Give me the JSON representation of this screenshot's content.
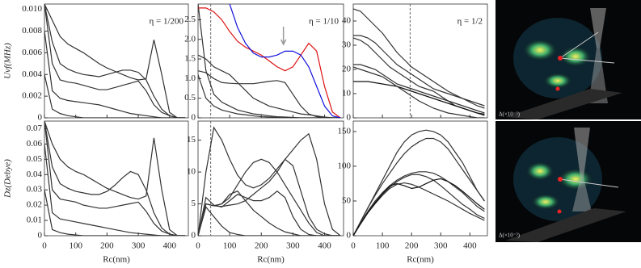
{
  "chart_data": [
    {
      "type": "line",
      "annotation": "η = 1/200",
      "ylabel": "Uvf(MHz)",
      "xlim": [
        0,
        460
      ],
      "ylim": [
        0,
        0.0105
      ],
      "xticks": [
        0,
        100,
        200,
        300,
        400
      ],
      "yticks": [
        0,
        0.002,
        0.004,
        0.006,
        0.008,
        {
          "value": 0.01,
          "label": "0.010"
        }
      ],
      "x": [
        0,
        25,
        50,
        75,
        100,
        125,
        150,
        175,
        200,
        225,
        250,
        275,
        300,
        325,
        350,
        375,
        400,
        425,
        450
      ],
      "series": [
        {
          "color": "#333333",
          "values": [
            0.0105,
            0.009,
            0.0075,
            0.0068,
            0.0064,
            0.006,
            0.0055,
            0.005,
            0.0046,
            0.0043,
            0.004,
            0.0037,
            0.0035,
            0.0036,
            0.0072,
            0.004,
            0.0005,
            0,
            0
          ]
        },
        {
          "color": "#333333",
          "values": [
            0.0105,
            0.007,
            0.005,
            0.0045,
            0.0042,
            0.004,
            0.0039,
            0.0038,
            0.004,
            0.0042,
            0.0044,
            0.0044,
            0.0042,
            0.0035,
            0.002,
            0.0008,
            0.0002,
            0,
            0
          ]
        },
        {
          "color": "#333333",
          "values": [
            0.0105,
            0.005,
            0.0035,
            0.0033,
            0.0032,
            0.003,
            0.0028,
            0.0026,
            0.0026,
            0.0028,
            0.003,
            0.0032,
            0.0034,
            0.0025,
            0.0012,
            0.0005,
            0.0002,
            0,
            0
          ]
        },
        {
          "color": "#333333",
          "values": [
            0.008,
            0.0025,
            0.0018,
            0.0016,
            0.0015,
            0.0014,
            0.0013,
            0.0012,
            0.001,
            0.0008,
            0.0006,
            0.0004,
            0.0003,
            0.0002,
            0.0001,
            0,
            0,
            0,
            0
          ]
        },
        {
          "color": "#333333",
          "values": [
            0.004,
            0.0008,
            0.0004,
            0.0002,
            0.0001,
            0,
            0,
            0,
            0,
            0,
            0,
            0,
            0,
            0,
            0,
            0,
            0,
            0,
            0
          ]
        }
      ]
    },
    {
      "type": "line",
      "annotation": "η = 1/10",
      "vline": 40,
      "arrow_x": 270,
      "xlim": [
        0,
        460
      ],
      "ylim": [
        0,
        2.9
      ],
      "xticks": [
        0,
        100,
        200,
        300,
        400
      ],
      "yticks": [
        0,
        0.5,
        {
          "value": 1,
          "label": "1.0"
        },
        1.5,
        {
          "value": 2,
          "label": "2.0"
        },
        2.5
      ],
      "x": [
        0,
        25,
        50,
        75,
        100,
        125,
        150,
        175,
        200,
        225,
        250,
        275,
        300,
        325,
        350,
        375,
        400,
        425,
        450
      ],
      "series": [
        {
          "color": "#333333",
          "values": [
            1.6,
            1.5,
            1.3,
            1.2,
            1.1,
            0.9,
            0.7,
            0.5,
            0.4,
            0.3,
            0.25,
            0.2,
            0.15,
            0.1,
            0.08,
            0.05,
            0.02,
            0,
            0
          ]
        },
        {
          "color": "#333333",
          "values": [
            1.2,
            1.15,
            1.0,
            0.9,
            0.88,
            0.87,
            0.87,
            0.87,
            0.9,
            0.93,
            0.95,
            0.9,
            0.6,
            0.3,
            0.1,
            0.03,
            0,
            0,
            0
          ]
        },
        {
          "color": "#333333",
          "values": [
            2.9,
            1.2,
            0.6,
            0.4,
            0.3,
            0.2,
            0.15,
            0.1,
            0.08,
            0.05,
            0.03,
            0.02,
            0.01,
            0,
            0,
            0,
            0,
            0,
            0
          ]
        },
        {
          "color": "#333333",
          "values": [
            1.1,
            0.5,
            0.3,
            0.2,
            0.15,
            0.1,
            0.08,
            0.05,
            0.03,
            0.02,
            0.01,
            0,
            0,
            0,
            0,
            0,
            0,
            0,
            0
          ]
        },
        {
          "color": "#dd1111",
          "values": [
            2.8,
            2.8,
            2.7,
            2.5,
            2.2,
            1.95,
            1.8,
            1.7,
            1.6,
            1.45,
            1.3,
            1.2,
            1.3,
            1.6,
            1.9,
            1.7,
            0.8,
            0.15,
            0
          ]
        },
        {
          "color": "#1111dd",
          "values": [
            null,
            null,
            null,
            null,
            2.9,
            2.3,
            1.9,
            1.65,
            1.55,
            1.55,
            1.6,
            1.7,
            1.7,
            1.6,
            1.3,
            0.8,
            0.3,
            0.05,
            0
          ]
        }
      ]
    },
    {
      "type": "line",
      "annotation": "η = 1/2",
      "vline": 195,
      "xlim": [
        0,
        460
      ],
      "ylim": [
        0,
        47
      ],
      "xticks": [
        0,
        100,
        200,
        300,
        400
      ],
      "yticks": [
        0,
        10,
        20,
        30,
        40
      ],
      "x": [
        0,
        25,
        50,
        75,
        100,
        125,
        150,
        175,
        200,
        225,
        250,
        275,
        300,
        325,
        350,
        375,
        400,
        425,
        450
      ],
      "series": [
        {
          "color": "#333333",
          "values": [
            45,
            44,
            41,
            38,
            35,
            31,
            27,
            24,
            21,
            19,
            17,
            15,
            13,
            11,
            9.5,
            8,
            6.5,
            5,
            4
          ]
        },
        {
          "color": "#333333",
          "values": [
            34,
            34,
            33,
            31,
            28,
            25,
            22,
            20,
            18,
            16,
            14,
            12,
            11,
            10,
            9,
            8,
            7,
            6,
            5
          ]
        },
        {
          "color": "#333333",
          "values": [
            33,
            32,
            30,
            27,
            24,
            21,
            19,
            17,
            15,
            13,
            12,
            11,
            9,
            7,
            5,
            4,
            3,
            2,
            1
          ]
        },
        {
          "color": "#333333",
          "values": [
            22,
            22,
            21,
            20,
            18,
            16,
            14,
            13,
            12,
            11,
            10,
            9,
            8,
            7,
            6,
            5,
            4,
            3,
            2
          ]
        },
        {
          "color": "#111111",
          "values": [
            15,
            15,
            15,
            14.5,
            14,
            13.5,
            13,
            12,
            11,
            10,
            9,
            8,
            7,
            6,
            5,
            4,
            3,
            2,
            1.5
          ]
        },
        {
          "color": "#333333",
          "values": [
            21,
            20,
            19,
            18,
            17,
            15,
            13,
            11,
            9,
            7,
            5.5,
            4,
            3,
            2,
            1.5,
            1,
            0.5,
            0,
            0
          ]
        }
      ]
    },
    {
      "type": "line",
      "ylabel": "Dz(Debye)",
      "xlabel": "Rc(nm)",
      "xlim": [
        0,
        460
      ],
      "ylim": [
        0,
        0.075
      ],
      "xticks": [
        0,
        100,
        200,
        300,
        400
      ],
      "yticks": [
        0,
        0.01,
        0.02,
        0.03,
        0.04,
        0.05,
        0.06,
        0.07
      ],
      "x": [
        0,
        25,
        50,
        75,
        100,
        125,
        150,
        175,
        200,
        225,
        250,
        275,
        300,
        325,
        350,
        375,
        400,
        425,
        450
      ],
      "series": [
        {
          "color": "#333333",
          "values": [
            0.075,
            0.06,
            0.05,
            0.045,
            0.042,
            0.04,
            0.037,
            0.034,
            0.031,
            0.029,
            0.027,
            0.025,
            0.024,
            0.026,
            0.064,
            0.03,
            0.004,
            0,
            0
          ]
        },
        {
          "color": "#333333",
          "values": [
            0.075,
            0.045,
            0.034,
            0.031,
            0.029,
            0.028,
            0.027,
            0.027,
            0.029,
            0.033,
            0.038,
            0.042,
            0.04,
            0.03,
            0.015,
            0.005,
            0.001,
            0,
            0
          ]
        },
        {
          "color": "#333333",
          "values": [
            0.075,
            0.03,
            0.024,
            0.023,
            0.022,
            0.02,
            0.019,
            0.018,
            0.018,
            0.019,
            0.02,
            0.021,
            0.022,
            0.016,
            0.008,
            0.003,
            0.001,
            0,
            0
          ]
        },
        {
          "color": "#333333",
          "values": [
            0.06,
            0.015,
            0.011,
            0.01,
            0.009,
            0.008,
            0.007,
            0.006,
            0.005,
            0.004,
            0.003,
            0.002,
            0.0015,
            0.001,
            0.0005,
            0,
            0,
            0,
            0
          ]
        },
        {
          "color": "#333333",
          "values": [
            0.03,
            0.004,
            0.002,
            0.001,
            0.0005,
            0,
            0,
            0,
            0,
            0,
            0,
            0,
            0,
            0,
            0,
            0,
            0,
            0,
            0
          ]
        }
      ]
    },
    {
      "type": "line",
      "xlabel": "Rc(nm)",
      "vline": 40,
      "xlim": [
        0,
        460
      ],
      "ylim": [
        0,
        18
      ],
      "xticks": [
        0,
        100,
        200,
        300,
        400
      ],
      "yticks": [
        0,
        5,
        10,
        15
      ],
      "x": [
        0,
        25,
        50,
        75,
        100,
        125,
        150,
        175,
        200,
        225,
        250,
        275,
        300,
        325,
        350,
        375,
        400,
        425,
        450
      ],
      "series": [
        {
          "color": "#333333",
          "values": [
            0,
            5,
            4.7,
            4.6,
            4.8,
            5,
            5.5,
            6.5,
            7.5,
            8.5,
            10,
            12,
            13.5,
            15,
            16,
            12,
            5,
            1,
            0
          ]
        },
        {
          "color": "#333333",
          "values": [
            0,
            10,
            17,
            15,
            12,
            9.5,
            8,
            7.5,
            8,
            9,
            10.5,
            12,
            11,
            7,
            3,
            1,
            0.3,
            0,
            0
          ]
        },
        {
          "color": "#333333",
          "values": [
            0,
            5,
            4.7,
            5,
            6,
            8,
            10,
            11.5,
            12,
            11.5,
            10,
            8,
            6,
            4,
            2,
            0.5,
            0,
            0,
            0
          ]
        },
        {
          "color": "#333333",
          "values": [
            0,
            6,
            4.8,
            4.5,
            5.5,
            6.5,
            6,
            5.5,
            5.5,
            6,
            7,
            6,
            3,
            1,
            0.2,
            0,
            0,
            0,
            0
          ]
        },
        {
          "color": "#333333",
          "values": [
            0,
            5,
            4.7,
            5,
            6.5,
            7,
            5.5,
            4,
            3,
            2,
            1.2,
            0.6,
            0.3,
            0,
            0,
            0,
            0,
            0,
            0
          ]
        },
        {
          "color": "#333333",
          "values": [
            0,
            4.5,
            3,
            1.5,
            0.5,
            0.2,
            0,
            0,
            0,
            0,
            0,
            0,
            0,
            0,
            0,
            0,
            0,
            0,
            0
          ]
        }
      ]
    },
    {
      "type": "line",
      "xlabel": "Rc(nm)",
      "xlim": [
        0,
        460
      ],
      "ylim": [
        0,
        165
      ],
      "xticks": [
        0,
        100,
        200,
        300,
        400
      ],
      "yticks": [
        0,
        50,
        100,
        150
      ],
      "x": [
        0,
        25,
        50,
        75,
        100,
        125,
        150,
        175,
        200,
        225,
        250,
        275,
        300,
        325,
        350,
        375,
        400,
        425,
        450
      ],
      "series": [
        {
          "color": "#333333",
          "values": [
            0,
            20,
            40,
            60,
            80,
            100,
            120,
            135,
            145,
            150,
            152,
            150,
            145,
            135,
            120,
            105,
            85,
            65,
            50
          ]
        },
        {
          "color": "#333333",
          "values": [
            0,
            20,
            40,
            58,
            75,
            90,
            105,
            118,
            128,
            135,
            140,
            140,
            135,
            125,
            110,
            95,
            80,
            65,
            50
          ]
        },
        {
          "color": "#333333",
          "values": [
            0,
            18,
            35,
            50,
            62,
            72,
            80,
            86,
            90,
            92,
            92,
            90,
            85,
            78,
            70,
            62,
            52,
            42,
            35
          ]
        },
        {
          "color": "#333333",
          "values": [
            0,
            18,
            34,
            48,
            60,
            70,
            78,
            84,
            88,
            88,
            85,
            80,
            72,
            63,
            54,
            45,
            38,
            30,
            25
          ]
        },
        {
          "color": "#333333",
          "values": [
            0,
            17,
            33,
            46,
            58,
            68,
            74,
            76,
            74,
            70,
            65,
            60,
            55,
            50,
            44,
            38,
            32,
            27,
            22
          ]
        },
        {
          "color": "#111111",
          "values": [
            0,
            17,
            33,
            47,
            60,
            72,
            75,
            72,
            68,
            70,
            75,
            80,
            82,
            78,
            72,
            64,
            55,
            46,
            38
          ]
        }
      ]
    }
  ],
  "images": [
    {
      "label": "Δ(×10⁻³)"
    },
    {
      "label": "Δ(×10⁻³)"
    }
  ]
}
